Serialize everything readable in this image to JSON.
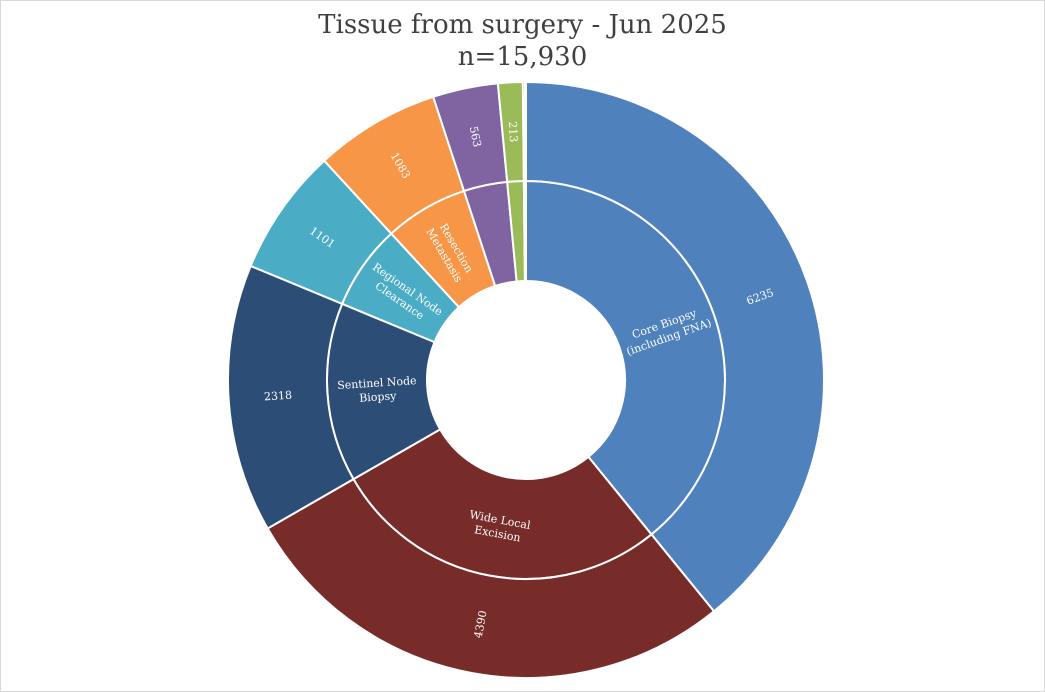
{
  "chart_data": {
    "type": "sunburst",
    "title": "Tissue from surgery - Jun 2025",
    "subtitle": "n=15,930",
    "segments": [
      {
        "label": "Core Biopsy (including FNA)",
        "label_lines": [
          "Core Biopsy",
          "(including FNA)"
        ],
        "value": 6235,
        "value_label": "6235",
        "color": "#4f81bd"
      },
      {
        "label": "Wide Local Excision",
        "label_lines": [
          "Wide Local",
          "Excision"
        ],
        "value": 4390,
        "value_label": "4390",
        "color": "#772c2a"
      },
      {
        "label": "Sentinel Node Biopsy",
        "label_lines": [
          "Sentinel Node",
          "Biopsy"
        ],
        "value": 2318,
        "value_label": "2318",
        "color": "#2c4d75"
      },
      {
        "label": "Regional Node Clearance",
        "label_lines": [
          "Regional Node",
          "Clearance"
        ],
        "value": 1101,
        "value_label": "1101",
        "color": "#4bacc6"
      },
      {
        "label": "Resection Metastasis",
        "label_lines": [
          "Resection",
          "Metastasis"
        ],
        "value": 1083,
        "value_label": "1083",
        "color": "#f79646"
      },
      {
        "label": "",
        "label_lines": [],
        "value": 563,
        "value_label": "563",
        "color": "#8064a2"
      },
      {
        "label": "",
        "label_lines": [],
        "value": 213,
        "value_label": "213",
        "color": "#9bbb59"
      },
      {
        "label": "",
        "label_lines": [],
        "value": 19,
        "value_label": "",
        "color": "#c0504d"
      },
      {
        "label": "",
        "label_lines": [],
        "value": 8,
        "value_label": "",
        "color": "#f2a6a6"
      }
    ]
  }
}
